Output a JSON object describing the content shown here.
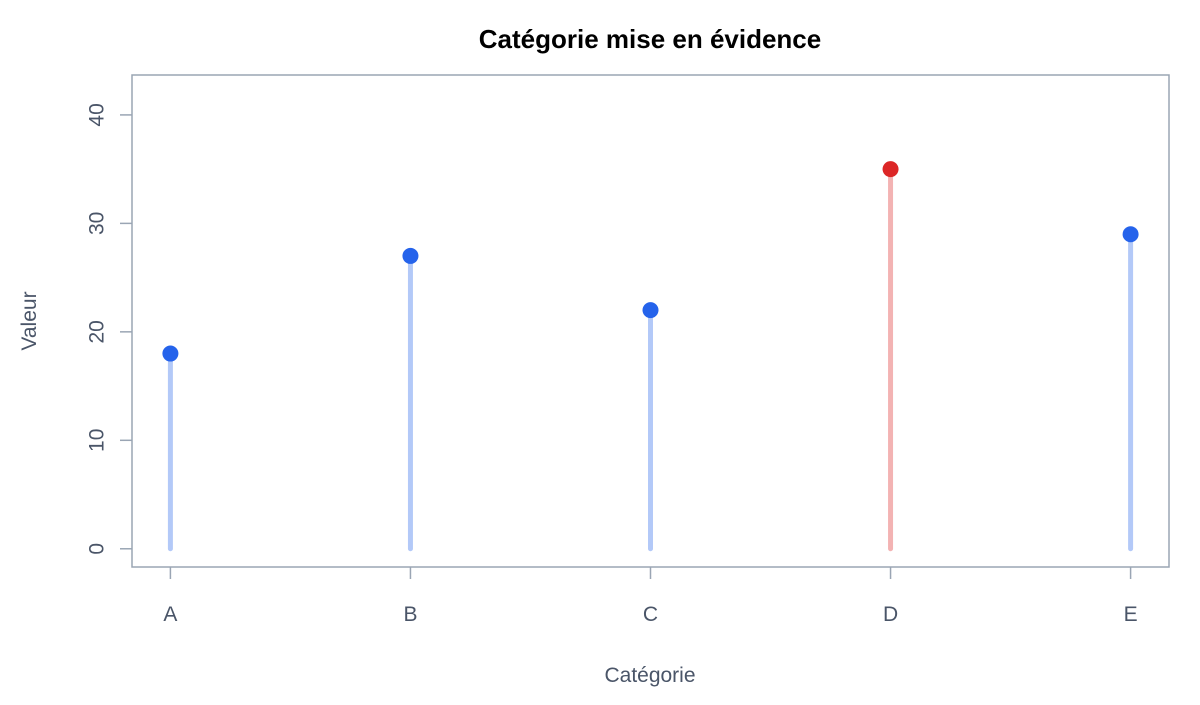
{
  "chart_data": {
    "type": "lollipop",
    "title": "Catégorie mise en évidence",
    "x_label": "Catégorie",
    "y_label": "Valeur",
    "categories": [
      "A",
      "B",
      "C",
      "D",
      "E"
    ],
    "values": [
      18,
      27,
      22,
      35,
      29
    ],
    "colors": [
      "#2563eb",
      "#2563eb",
      "#2563eb",
      "#dc2626",
      "#2563eb"
    ],
    "ylim": [
      -1.68,
      43.68
    ],
    "yticks": [
      0,
      10,
      20,
      30,
      40
    ]
  }
}
